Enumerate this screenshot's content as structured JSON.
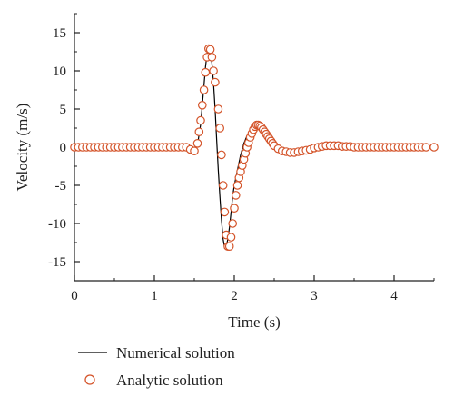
{
  "chart_data": {
    "type": "line",
    "xlabel": "Time (s)",
    "ylabel": "Velocity (m/s)",
    "xlim": [
      0,
      4.5
    ],
    "ylim": [
      -17.5,
      17.5
    ],
    "x_ticks": [
      0,
      1,
      2,
      3,
      4
    ],
    "y_ticks": [
      15,
      10,
      5,
      0,
      -5,
      -10,
      -15
    ],
    "x_tick_labels": [
      "0",
      "1",
      "2",
      "3",
      "4"
    ],
    "y_tick_labels": [
      "15",
      "10",
      "5",
      "0",
      "-5",
      "-10",
      "-15"
    ],
    "grid": false,
    "legend_position": "bottom-left",
    "series": [
      {
        "name": "Numerical solution",
        "style": "line",
        "color": "#000000",
        "x": [
          0.0,
          1.0,
          1.4,
          1.45,
          1.5,
          1.55,
          1.58,
          1.6,
          1.62,
          1.64,
          1.66,
          1.68,
          1.7,
          1.72,
          1.74,
          1.76,
          1.78,
          1.8,
          1.82,
          1.84,
          1.86,
          1.88,
          1.9,
          1.92,
          1.94,
          1.96,
          1.98,
          2.0,
          2.02,
          2.04,
          2.08,
          2.12,
          2.16,
          2.2,
          2.24,
          2.28,
          2.32,
          2.36,
          2.4,
          2.45,
          2.5,
          2.6,
          2.7,
          2.8,
          2.9,
          3.0,
          3.2,
          3.4,
          3.6,
          3.8,
          4.0,
          4.5
        ],
        "y": [
          0.0,
          0.0,
          0.0,
          -0.3,
          -0.5,
          1.0,
          3.0,
          5.5,
          8.0,
          10.5,
          12.3,
          13.0,
          12.6,
          11.0,
          8.5,
          5.0,
          1.0,
          -3.0,
          -6.5,
          -9.5,
          -12.0,
          -13.2,
          -13.0,
          -12.0,
          -10.5,
          -8.5,
          -6.5,
          -5.0,
          -4.0,
          -3.0,
          -1.0,
          0.5,
          1.5,
          2.2,
          2.7,
          2.9,
          2.8,
          2.3,
          1.6,
          0.8,
          0.0,
          -0.6,
          -0.7,
          -0.6,
          -0.3,
          0.0,
          0.3,
          0.3,
          0.1,
          0.0,
          0.0,
          0.0
        ]
      },
      {
        "name": "Analytic solution",
        "style": "markers",
        "marker": "open-circle",
        "color": "#d4542a",
        "x": [
          0.0,
          0.05,
          0.1,
          0.15,
          0.2,
          0.25,
          0.3,
          0.35,
          0.4,
          0.45,
          0.5,
          0.55,
          0.6,
          0.65,
          0.7,
          0.75,
          0.8,
          0.85,
          0.9,
          0.95,
          1.0,
          1.05,
          1.1,
          1.15,
          1.2,
          1.25,
          1.3,
          1.35,
          1.4,
          1.45,
          1.5,
          1.54,
          1.56,
          1.58,
          1.6,
          1.62,
          1.64,
          1.66,
          1.68,
          1.7,
          1.72,
          1.74,
          1.76,
          1.8,
          1.82,
          1.84,
          1.86,
          1.88,
          1.9,
          1.92,
          1.94,
          1.96,
          1.98,
          2.0,
          2.02,
          2.04,
          2.06,
          2.08,
          2.1,
          2.12,
          2.14,
          2.16,
          2.18,
          2.2,
          2.22,
          2.24,
          2.26,
          2.28,
          2.3,
          2.32,
          2.34,
          2.36,
          2.38,
          2.4,
          2.42,
          2.44,
          2.46,
          2.48,
          2.5,
          2.55,
          2.6,
          2.65,
          2.7,
          2.75,
          2.8,
          2.85,
          2.9,
          2.95,
          3.0,
          3.05,
          3.1,
          3.15,
          3.2,
          3.25,
          3.3,
          3.35,
          3.4,
          3.45,
          3.5,
          3.55,
          3.6,
          3.65,
          3.7,
          3.75,
          3.8,
          3.85,
          3.9,
          3.95,
          4.0,
          4.05,
          4.1,
          4.15,
          4.2,
          4.25,
          4.3,
          4.35,
          4.4,
          4.5
        ],
        "y": [
          0.0,
          0.0,
          0.0,
          0.0,
          0.0,
          0.0,
          0.0,
          0.0,
          0.0,
          0.0,
          0.0,
          0.0,
          0.0,
          0.0,
          0.0,
          0.0,
          0.0,
          0.0,
          0.0,
          0.0,
          0.0,
          0.0,
          0.0,
          0.0,
          0.0,
          0.0,
          0.0,
          0.0,
          0.0,
          -0.3,
          -0.5,
          0.5,
          2.0,
          3.5,
          5.5,
          7.5,
          9.8,
          11.8,
          12.9,
          12.8,
          11.8,
          10.0,
          8.5,
          5.0,
          2.5,
          -1.0,
          -5.0,
          -8.5,
          -11.5,
          -13.0,
          -13.0,
          -11.8,
          -10.0,
          -8.0,
          -6.3,
          -5.0,
          -4.0,
          -3.2,
          -2.4,
          -1.6,
          -0.8,
          0.0,
          0.6,
          1.3,
          1.8,
          2.3,
          2.7,
          2.9,
          2.9,
          2.8,
          2.6,
          2.3,
          2.0,
          1.7,
          1.4,
          1.1,
          0.8,
          0.5,
          0.2,
          -0.2,
          -0.5,
          -0.6,
          -0.7,
          -0.7,
          -0.6,
          -0.5,
          -0.4,
          -0.3,
          -0.1,
          0.0,
          0.1,
          0.2,
          0.2,
          0.2,
          0.2,
          0.1,
          0.1,
          0.1,
          0.0,
          0.0,
          0.0,
          0.0,
          0.0,
          0.0,
          0.0,
          0.0,
          0.0,
          0.0,
          0.0,
          0.0,
          0.0,
          0.0,
          0.0,
          0.0,
          0.0,
          0.0,
          0.0,
          0.0
        ]
      }
    ]
  }
}
